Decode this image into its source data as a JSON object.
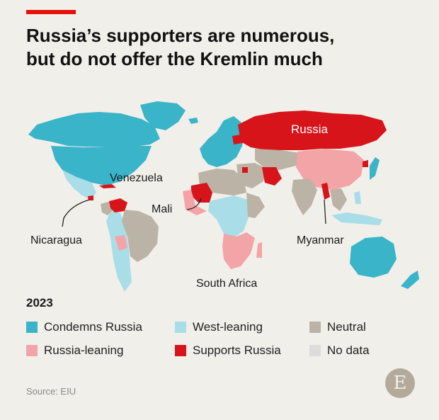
{
  "title": {
    "line1": "Russia’s supporters are numerous,",
    "line2": "but do not offer the Kremlin much"
  },
  "labels": {
    "russia": "Russia",
    "venezuela": "Venezuela",
    "mali": "Mali",
    "nicaragua": "Nicaragua",
    "myanmar": "Myanmar",
    "south_africa": "South Africa"
  },
  "legend": {
    "year": "2023",
    "items": [
      {
        "label": "Condemns Russia",
        "color": "#3ab4c8"
      },
      {
        "label": "West-leaning",
        "color": "#a9dde8"
      },
      {
        "label": "Neutral",
        "color": "#bbb3a5"
      },
      {
        "label": "Russia-leaning",
        "color": "#f3a4a6"
      },
      {
        "label": "Supports Russia",
        "color": "#d7141a"
      },
      {
        "label": "No data",
        "color": "#dcdcdc"
      }
    ]
  },
  "source": "Source: EIU",
  "logo_letter": "E"
}
